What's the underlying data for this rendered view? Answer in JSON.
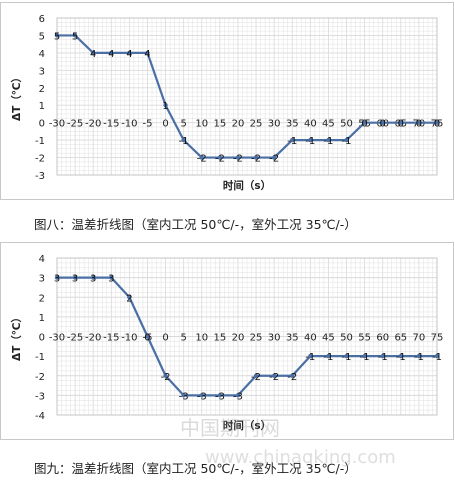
{
  "colors": {
    "line": "#4a6fa5",
    "grid": "#d9d9d9",
    "frame": "#c8c8c8",
    "text": "#222222"
  },
  "watermark": {
    "cn": "中国期刊网",
    "url": "www.chinaqking.com"
  },
  "chart_data": [
    {
      "type": "line",
      "caption": "图八：温差折线图（室内工况 50℃/-，室外工况 35℃/-）",
      "xlabel": "时间（s）",
      "ylabel": "ΔT（℃）",
      "categories": [
        "-30",
        "-25",
        "-20",
        "-15",
        "-10",
        "-5",
        "0",
        "5",
        "10",
        "15",
        "20",
        "25",
        "30",
        "35",
        "40",
        "45",
        "50",
        "55",
        "60",
        "65",
        "70",
        "75"
      ],
      "values": [
        5,
        5,
        4,
        4,
        4,
        4,
        1,
        -1,
        -2,
        -2,
        -2,
        -2,
        -2,
        -1,
        -1,
        -1,
        -1,
        0,
        0,
        0,
        0,
        0
      ],
      "yticks": [
        6,
        5,
        4,
        3,
        2,
        1,
        0,
        -1,
        -2,
        -3
      ],
      "ylim": [
        -3,
        6
      ],
      "grid": true
    },
    {
      "type": "line",
      "caption": "图九：温差折线图（室内工况 50℃/-，室外工况 35℃/-）",
      "xlabel": "时间（s）",
      "ylabel": "ΔT（℃）",
      "categories": [
        "-30",
        "-25",
        "-20",
        "-15",
        "-10",
        "-5",
        "0",
        "5",
        "10",
        "15",
        "20",
        "25",
        "30",
        "35",
        "40",
        "45",
        "50",
        "55",
        "60",
        "65",
        "70",
        "75"
      ],
      "values": [
        3,
        3,
        3,
        3,
        2,
        0,
        -2,
        -3,
        -3,
        -3,
        -3,
        -2,
        -2,
        -2,
        -1,
        -1,
        -1,
        -1,
        -1,
        -1,
        -1,
        -1
      ],
      "yticks": [
        4,
        3,
        2,
        1,
        0,
        -1,
        -2,
        -3,
        -4
      ],
      "ylim": [
        -4,
        4
      ],
      "grid": true
    }
  ]
}
